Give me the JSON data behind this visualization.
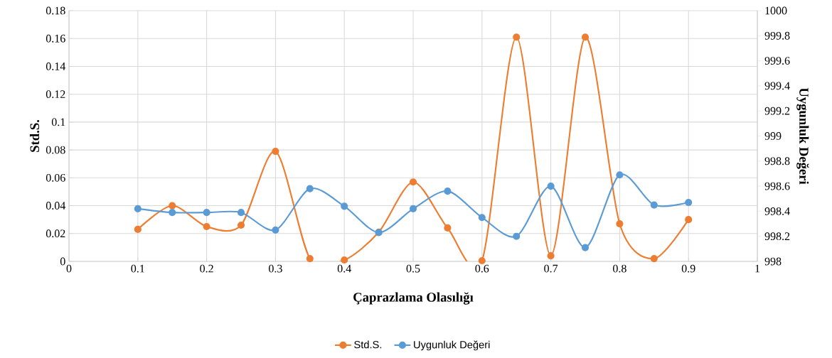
{
  "chart_data": {
    "type": "line",
    "xlabel": "Çaprazlama Olasılığı",
    "ylabel": "Std.S.",
    "y2label": "Uygunluk Değeri",
    "x": [
      0.1,
      0.15,
      0.2,
      0.25,
      0.3,
      0.35,
      0.4,
      0.45,
      0.5,
      0.55,
      0.6,
      0.65,
      0.7,
      0.75,
      0.8,
      0.85,
      0.9
    ],
    "series": [
      {
        "name": "Std.S.",
        "color": "#ed7d31",
        "values": [
          0.023,
          0.04,
          0.025,
          0.026,
          0.079,
          0.002,
          0.001,
          0.021,
          0.057,
          0.024,
          0.0005,
          0.161,
          0.004,
          0.161,
          0.027,
          0.002,
          0.03
        ]
      },
      {
        "name": "Uygunluk Değeri",
        "color": "#5b9bd5",
        "axis": "y2",
        "values": [
          998.42,
          998.39,
          998.39,
          998.39,
          998.25,
          998.58,
          998.44,
          998.23,
          998.42,
          998.56,
          998.35,
          998.2,
          998.6,
          998.11,
          998.69,
          998.45,
          998.47
        ]
      }
    ],
    "xlim": [
      0,
      1
    ],
    "xticks": [
      0,
      0.1,
      0.2,
      0.3,
      0.4,
      0.5,
      0.6,
      0.7,
      0.8,
      0.9,
      1
    ],
    "ylim": [
      0,
      0.18
    ],
    "yticks": [
      0,
      0.02,
      0.04,
      0.06,
      0.08,
      0.1,
      0.12,
      0.14,
      0.16,
      0.18
    ],
    "y2lim": [
      998,
      1000
    ],
    "y2ticks": [
      998,
      998.2,
      998.4,
      998.6,
      998.8,
      999,
      999.2,
      999.4,
      999.6,
      999.8,
      1000
    ],
    "grid": true,
    "legend": "bottom",
    "marker": "circle",
    "line_style": "solid"
  }
}
